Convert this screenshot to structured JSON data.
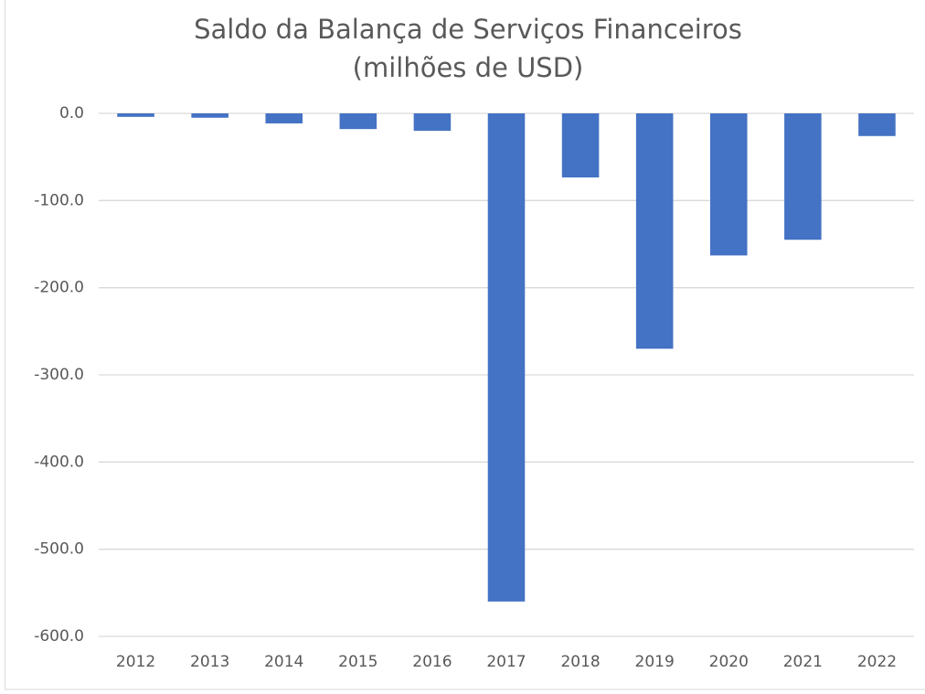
{
  "chart_data": {
    "type": "bar",
    "title": "Saldo da Balança de Serviços Financeiros",
    "subtitle": "(milhões de USD)",
    "categories": [
      "2012",
      "2013",
      "2014",
      "2015",
      "2016",
      "2017",
      "2018",
      "2019",
      "2020",
      "2021",
      "2022"
    ],
    "values": [
      -4,
      -5,
      -11.5,
      -18,
      -20,
      -560,
      -73.5,
      -270,
      -163,
      -145,
      -26
    ],
    "color": "#4472c4",
    "ylim": [
      -600,
      0
    ],
    "yticks": [
      {
        "value": 0,
        "label": "0.0"
      },
      {
        "value": -100,
        "label": "-100.0"
      },
      {
        "value": -200,
        "label": "-200.0"
      },
      {
        "value": -300,
        "label": "-300.0"
      },
      {
        "value": -400,
        "label": "-400.0"
      },
      {
        "value": -500,
        "label": "-500.0"
      },
      {
        "value": -600,
        "label": "-600.0"
      }
    ],
    "grid": true
  }
}
